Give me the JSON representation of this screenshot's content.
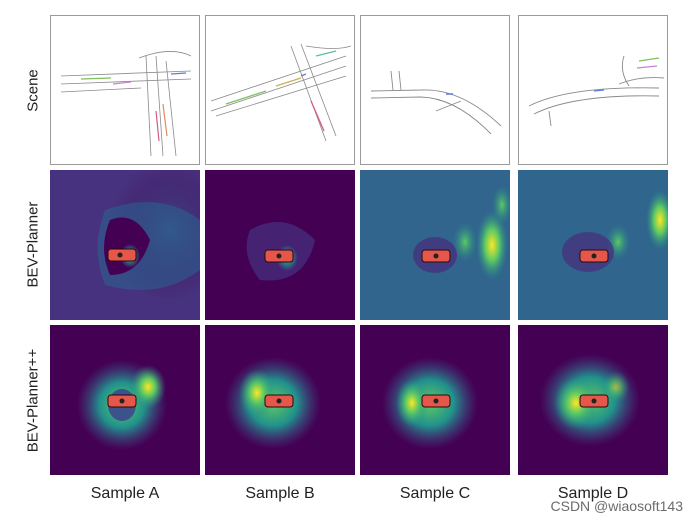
{
  "rows": [
    "Scene",
    "BEV-Planner",
    "BEV-Planner++"
  ],
  "columns": [
    "Sample A",
    "Sample B",
    "Sample C",
    "Sample D"
  ],
  "watermark": "CSDN @wiaosoft143",
  "colormap": [
    "#440154",
    "#3b528b",
    "#21918c",
    "#5ec962",
    "#fde725"
  ],
  "car_color": "#e4574a"
}
